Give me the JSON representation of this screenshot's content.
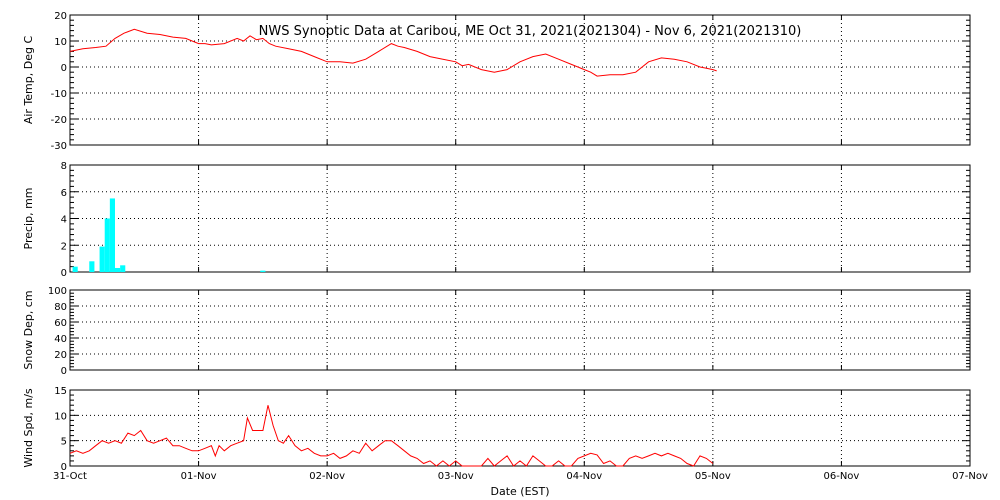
{
  "chart_data": {
    "type": "multi-panel time series",
    "title": "NWS Synoptic Data at Caribou, ME   Oct 31, 2021(2021304) - Nov  6, 2021(2021310)",
    "xlabel": "Date (EST)",
    "x_unit": "days since 31-Oct 00:00 EST",
    "x_ticks": [
      "31-Oct",
      "01-Nov",
      "02-Nov",
      "03-Nov",
      "04-Nov",
      "05-Nov",
      "06-Nov",
      "07-Nov"
    ],
    "xlim": [
      0,
      7
    ],
    "grid": "dotted vertical at day boundaries, dotted horizontal at major ticks",
    "colors": {
      "temp": "#ff0000",
      "precip": "#00ffff",
      "wind": "#ff0000",
      "axes": "#000000"
    },
    "panels": [
      {
        "id": "temp",
        "type": "line",
        "ylabel": "Air Temp, Deg C",
        "ylim": [
          -30,
          20
        ],
        "yticks": [
          -30,
          -20,
          -10,
          0,
          10,
          20
        ],
        "series": [
          {
            "name": "Air Temp",
            "x": [
              0.0,
              0.1,
              0.2,
              0.28,
              0.35,
              0.42,
              0.5,
              0.6,
              0.7,
              0.8,
              0.9,
              1.0,
              1.05,
              1.1,
              1.2,
              1.3,
              1.35,
              1.4,
              1.45,
              1.5,
              1.55,
              1.6,
              1.7,
              1.8,
              1.9,
              2.0,
              2.1,
              2.2,
              2.3,
              2.4,
              2.5,
              2.55,
              2.6,
              2.7,
              2.8,
              2.9,
              3.0,
              3.05,
              3.1,
              3.2,
              3.3,
              3.4,
              3.5,
              3.6,
              3.7,
              3.8,
              3.9,
              3.95,
              4.0,
              4.05,
              4.1,
              4.2,
              4.3,
              4.4,
              4.5,
              4.6,
              4.7,
              4.8,
              4.9,
              4.95,
              5.0,
              5.03
            ],
            "y": [
              6,
              7,
              7.5,
              8,
              11,
              13,
              14.5,
              13,
              12.5,
              11.5,
              11,
              9,
              9,
              8.5,
              9,
              11,
              10,
              12,
              10.5,
              11,
              9,
              8,
              7,
              6,
              4,
              2,
              2,
              1.5,
              3,
              6,
              9,
              8,
              7.5,
              6,
              4,
              3,
              2,
              0.5,
              1,
              -1,
              -2,
              -1,
              2,
              4,
              5,
              3,
              1,
              0,
              -1,
              -2,
              -3.5,
              -3,
              -3,
              -2,
              2,
              3.5,
              3,
              2,
              0,
              -0.5,
              -1,
              -1.5
            ]
          }
        ]
      },
      {
        "id": "precip",
        "type": "bar",
        "ylabel": "Precip, mm",
        "ylim": [
          0,
          8
        ],
        "yticks": [
          0,
          2,
          4,
          6,
          8
        ],
        "bar_width_days": 0.04,
        "series": [
          {
            "name": "Precip",
            "x": [
              0.04,
              0.17,
              0.25,
              0.29,
              0.33,
              0.37,
              0.41,
              1.5
            ],
            "values": [
              0.4,
              0.8,
              1.9,
              4.0,
              5.5,
              0.3,
              0.5,
              0.1
            ]
          }
        ]
      },
      {
        "id": "snow",
        "type": "line",
        "ylabel": "Snow Dep, cm",
        "ylim": [
          0,
          100
        ],
        "yticks": [
          0,
          20,
          40,
          60,
          80,
          100
        ],
        "series": []
      },
      {
        "id": "wind",
        "type": "line",
        "ylabel": "Wind Spd, m/s",
        "ylim": [
          0,
          15
        ],
        "yticks": [
          0,
          5,
          10,
          15
        ],
        "series": [
          {
            "name": "Wind Spd",
            "x": [
              0.0,
              0.05,
              0.1,
              0.15,
              0.2,
              0.25,
              0.3,
              0.35,
              0.4,
              0.45,
              0.5,
              0.55,
              0.6,
              0.65,
              0.7,
              0.75,
              0.8,
              0.85,
              0.9,
              0.95,
              1.0,
              1.05,
              1.1,
              1.13,
              1.16,
              1.2,
              1.25,
              1.3,
              1.35,
              1.38,
              1.42,
              1.46,
              1.5,
              1.54,
              1.58,
              1.62,
              1.66,
              1.7,
              1.75,
              1.8,
              1.85,
              1.9,
              1.95,
              2.0,
              2.05,
              2.1,
              2.15,
              2.2,
              2.25,
              2.3,
              2.35,
              2.4,
              2.45,
              2.5,
              2.55,
              2.6,
              2.65,
              2.7,
              2.75,
              2.8,
              2.85,
              2.9,
              2.95,
              3.0,
              3.05,
              3.1,
              3.15,
              3.2,
              3.25,
              3.3,
              3.35,
              3.4,
              3.45,
              3.5,
              3.55,
              3.6,
              3.65,
              3.7,
              3.75,
              3.8,
              3.85,
              3.9,
              3.95,
              4.0,
              4.05,
              4.1,
              4.15,
              4.2,
              4.25,
              4.3,
              4.35,
              4.4,
              4.45,
              4.5,
              4.55,
              4.6,
              4.65,
              4.7,
              4.75,
              4.8,
              4.85,
              4.9,
              4.95,
              5.0
            ],
            "y": [
              2.5,
              3,
              2.5,
              3,
              4,
              5,
              4.5,
              5,
              4.5,
              6.5,
              6,
              7,
              5,
              4.5,
              5,
              5.5,
              4,
              4,
              3.5,
              3,
              3,
              3.5,
              4,
              2,
              4,
              3,
              4,
              4.5,
              5,
              9.5,
              7,
              7,
              7,
              12,
              8,
              5,
              4.5,
              6,
              4,
              3,
              3.5,
              2.5,
              2,
              2,
              2.5,
              1.5,
              2,
              3,
              2.5,
              4.5,
              3,
              4,
              5,
              5,
              4,
              3,
              2,
              1.5,
              0.5,
              1,
              0,
              1,
              0,
              1,
              0,
              0,
              0,
              0,
              1.5,
              0,
              1,
              2,
              0,
              1,
              0,
              2,
              1,
              0,
              0,
              1,
              0,
              0,
              1.5,
              2,
              2.5,
              2.2,
              0.5,
              1,
              0,
              0,
              1.5,
              2,
              1.5,
              2,
              2.5,
              2,
              2.5,
              2,
              1.5,
              0.5,
              0,
              2,
              1.5,
              0.5
            ]
          }
        ]
      }
    ]
  }
}
